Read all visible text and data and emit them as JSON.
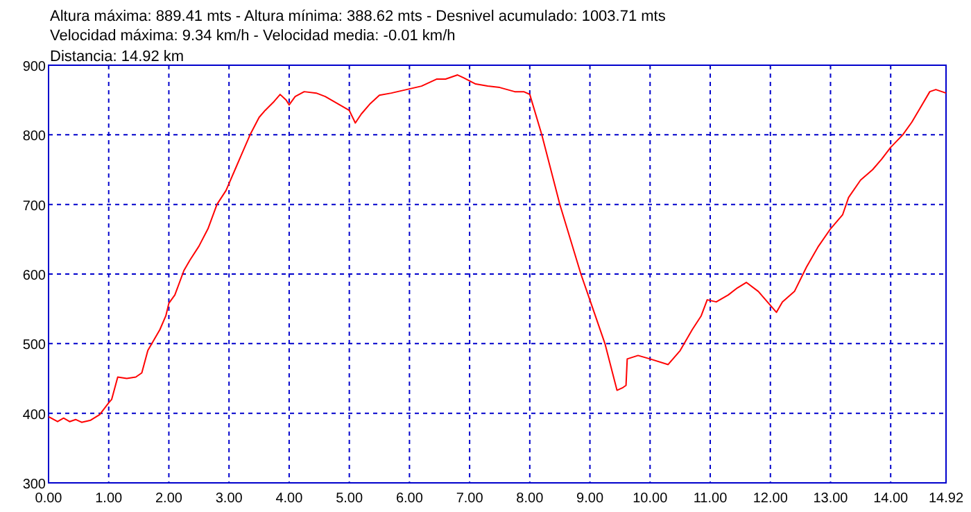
{
  "chart_data": {
    "type": "line",
    "title": "Altura máxima: 889.41 mts - Altura mínima: 388.62 mts - Desnivel acumulado: 1003.71 mts",
    "subtitle": "Velocidad máxima: 9.34 km/h - Velocidad media: -0.01 km/h",
    "annotations": [
      "Distancia: 14.92 km"
    ],
    "series": [
      {
        "color": "#ff0000",
        "x": [
          0,
          0.15,
          0.25,
          0.35,
          0.45,
          0.55,
          0.7,
          0.85,
          1.0,
          1.05,
          1.15,
          1.3,
          1.45,
          1.55,
          1.65,
          1.75,
          1.85,
          1.95,
          2.0,
          2.1,
          2.25,
          2.35,
          2.5,
          2.65,
          2.8,
          2.95,
          3.1,
          3.2,
          3.35,
          3.5,
          3.6,
          3.75,
          3.85,
          3.95,
          4.0,
          4.1,
          4.25,
          4.45,
          4.6,
          4.8,
          5.0,
          5.1,
          5.2,
          5.35,
          5.5,
          5.7,
          6.0,
          6.2,
          6.45,
          6.6,
          6.8,
          6.9,
          7.1,
          7.3,
          7.5,
          7.75,
          7.9,
          8.0,
          8.2,
          8.5,
          8.85,
          9.05,
          9.25,
          9.45,
          9.55,
          9.6,
          9.62,
          9.8,
          10.0,
          10.3,
          10.5,
          10.7,
          10.85,
          10.95,
          11.1,
          11.3,
          11.45,
          11.6,
          11.8,
          12.0,
          12.1,
          12.2,
          12.4,
          12.6,
          12.8,
          13.0,
          13.2,
          13.3,
          13.5,
          13.7,
          13.85,
          14.0,
          14.2,
          14.35,
          14.5,
          14.65,
          14.75,
          14.92
        ],
        "values": [
          395,
          388,
          393,
          388,
          391,
          387,
          390,
          398,
          415,
          420,
          452,
          450,
          452,
          458,
          490,
          505,
          520,
          540,
          558,
          570,
          605,
          620,
          640,
          665,
          700,
          720,
          750,
          770,
          800,
          825,
          835,
          848,
          858,
          850,
          843,
          855,
          862,
          860,
          855,
          845,
          835,
          817,
          830,
          845,
          857,
          860,
          866,
          870,
          880,
          880,
          886,
          882,
          873,
          870,
          868,
          862,
          862,
          858,
          800,
          700,
          600,
          550,
          500,
          433,
          437,
          440,
          478,
          483,
          478,
          470,
          490,
          520,
          540,
          563,
          560,
          570,
          580,
          588,
          575,
          555,
          545,
          560,
          575,
          610,
          640,
          665,
          685,
          710,
          735,
          750,
          765,
          782,
          800,
          818,
          840,
          862,
          865,
          860
        ]
      }
    ],
    "xlim": [
      0,
      14.92
    ],
    "ylim": [
      300,
      900
    ],
    "xticks": [
      {
        "value": 0,
        "label": "0.00"
      },
      {
        "value": 1,
        "label": "1.00"
      },
      {
        "value": 2,
        "label": "2.00"
      },
      {
        "value": 3,
        "label": "3.00"
      },
      {
        "value": 4,
        "label": "4.00"
      },
      {
        "value": 5,
        "label": "5.00"
      },
      {
        "value": 6,
        "label": "6.00"
      },
      {
        "value": 7,
        "label": "7.00"
      },
      {
        "value": 8,
        "label": "8.00"
      },
      {
        "value": 9,
        "label": "9.00"
      },
      {
        "value": 10,
        "label": "10.00"
      },
      {
        "value": 11,
        "label": "11.00"
      },
      {
        "value": 12,
        "label": "12.00"
      },
      {
        "value": 13,
        "label": "13.00"
      },
      {
        "value": 14,
        "label": "14.00"
      },
      {
        "value": 14.92,
        "label": "14.92"
      }
    ],
    "yticks": [
      300,
      400,
      500,
      600,
      700,
      800,
      900
    ],
    "grid": true,
    "marker": "none",
    "line_style": "solid"
  }
}
